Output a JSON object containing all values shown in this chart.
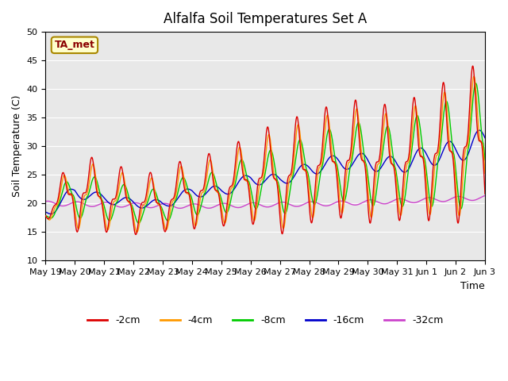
{
  "title": "Alfalfa Soil Temperatures Set A",
  "ylabel": "Soil Temperature (C)",
  "xlabel": "Time",
  "annotation": "TA_met",
  "ylim": [
    10,
    50
  ],
  "yticks": [
    10,
    15,
    20,
    25,
    30,
    35,
    40,
    45,
    50
  ],
  "colors": {
    "-2cm": "#dd0000",
    "-4cm": "#ff9900",
    "-8cm": "#00cc00",
    "-16cm": "#0000cc",
    "-32cm": "#cc44cc"
  },
  "legend_labels": [
    "-2cm",
    "-4cm",
    "-8cm",
    "-16cm",
    "-32cm"
  ],
  "background_color": "#e8e8e8",
  "n_days": 15,
  "start_day": 19,
  "pts_per_day": 96
}
